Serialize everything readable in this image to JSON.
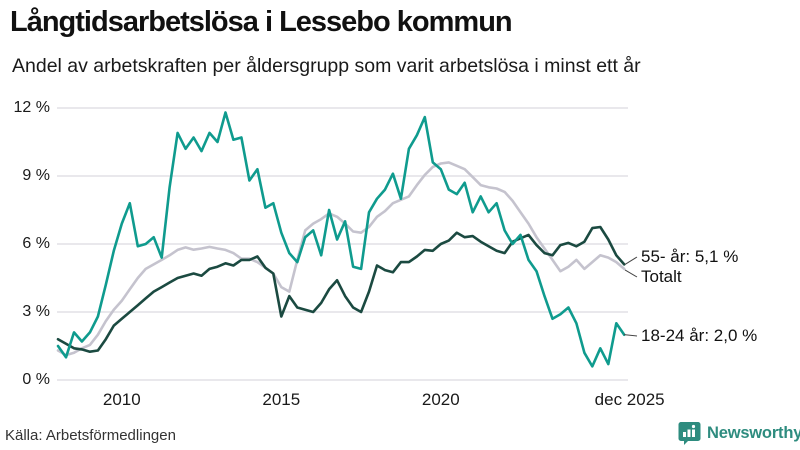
{
  "header": {
    "title": "Långtidsarbetslösa i Lessebo kommun",
    "subtitle": "Andel av arbetskraften per åldersgrupp som varit arbetslösa i minst ett år"
  },
  "footer": {
    "source": "Källa: Arbetsförmedlingen",
    "brand": "Newsworthy",
    "brand_color": "#2e8c7f"
  },
  "colors": {
    "grid": "#e2e1e6",
    "connector": "#444444",
    "text": "#1a1a1a"
  },
  "chart_data": {
    "type": "line",
    "title": "Långtidsarbetslösa i Lessebo kommun",
    "subtitle": "Andel av arbetskraften per åldersgrupp som varit arbetslösa i minst ett år",
    "x_start": 2008.0,
    "x_step": 0.25,
    "xlim": [
      2008.0,
      2025.92
    ],
    "ylim": [
      0,
      12
    ],
    "grid": true,
    "legend_position": "end-of-line-labels",
    "y_ticks": [
      {
        "label": "0 %",
        "value": 0
      },
      {
        "label": "3 %",
        "value": 3
      },
      {
        "label": "6 %",
        "value": 6
      },
      {
        "label": "9 %",
        "value": 9
      },
      {
        "label": "12 %",
        "value": 12
      }
    ],
    "x_ticks": [
      {
        "label": "2010",
        "year": 2010
      },
      {
        "label": "2015",
        "year": 2015
      },
      {
        "label": "2020",
        "year": 2020
      },
      {
        "label": "dec 2025",
        "year": 2025.92
      }
    ],
    "series": [
      {
        "name": "Totalt",
        "end_label": "Totalt",
        "color": "#c5c3ce",
        "values": [
          1.3,
          1.1,
          1.2,
          1.4,
          1.55,
          2.0,
          2.6,
          3.1,
          3.5,
          4.0,
          4.5,
          4.9,
          5.1,
          5.3,
          5.5,
          5.74,
          5.85,
          5.75,
          5.8,
          5.87,
          5.8,
          5.74,
          5.6,
          5.35,
          5.35,
          5.2,
          4.95,
          4.7,
          4.1,
          3.9,
          5.3,
          6.6,
          6.9,
          7.1,
          7.35,
          7.2,
          6.9,
          6.55,
          6.5,
          6.75,
          7.2,
          7.45,
          7.8,
          7.95,
          8.1,
          8.6,
          9.05,
          9.4,
          9.55,
          9.6,
          9.45,
          9.3,
          8.95,
          8.6,
          8.5,
          8.45,
          8.3,
          7.9,
          7.4,
          6.9,
          6.3,
          5.8,
          5.3,
          4.8,
          5.0,
          5.3,
          4.9,
          5.2,
          5.5,
          5.4,
          5.2,
          4.9
        ]
      },
      {
        "name": "55- år",
        "end_label": "55- år: 5,1 %",
        "end_value": "5,1 %",
        "color": "#1b4a41",
        "values": [
          1.8,
          1.6,
          1.4,
          1.35,
          1.25,
          1.3,
          1.8,
          2.4,
          2.7,
          3.0,
          3.3,
          3.6,
          3.9,
          4.1,
          4.3,
          4.5,
          4.6,
          4.7,
          4.6,
          4.9,
          5.0,
          5.15,
          5.05,
          5.3,
          5.3,
          5.45,
          4.95,
          4.7,
          2.8,
          3.7,
          3.2,
          3.1,
          3.0,
          3.4,
          4.0,
          4.4,
          3.7,
          3.2,
          3.0,
          3.9,
          5.05,
          4.85,
          4.75,
          5.2,
          5.2,
          5.45,
          5.74,
          5.7,
          6.0,
          6.15,
          6.5,
          6.3,
          6.35,
          6.1,
          5.9,
          5.7,
          5.6,
          6.1,
          6.25,
          6.4,
          5.95,
          5.6,
          5.5,
          5.95,
          6.05,
          5.9,
          6.1,
          6.7,
          6.75,
          6.2,
          5.5,
          5.1
        ]
      },
      {
        "name": "18-24 år",
        "end_label": "18-24 år: 2,0 %",
        "end_value": "2,0 %",
        "color": "#0f9b8e",
        "values": [
          1.5,
          1.0,
          2.1,
          1.7,
          2.1,
          2.8,
          4.2,
          5.7,
          6.9,
          7.8,
          5.9,
          6.0,
          6.3,
          5.4,
          8.5,
          10.9,
          10.2,
          10.7,
          10.1,
          10.9,
          10.5,
          11.8,
          10.6,
          10.7,
          8.8,
          9.3,
          7.6,
          7.8,
          6.5,
          5.6,
          5.2,
          6.3,
          6.6,
          5.5,
          7.5,
          6.2,
          7.0,
          5.0,
          4.9,
          7.4,
          8.0,
          8.4,
          9.1,
          8.0,
          10.2,
          10.8,
          11.6,
          9.6,
          9.3,
          8.4,
          8.2,
          8.7,
          7.4,
          8.1,
          7.4,
          7.8,
          6.6,
          6.0,
          6.4,
          5.3,
          4.8,
          3.7,
          2.7,
          2.9,
          3.2,
          2.5,
          1.2,
          0.6,
          1.4,
          0.7,
          2.5,
          2.0
        ]
      }
    ]
  }
}
